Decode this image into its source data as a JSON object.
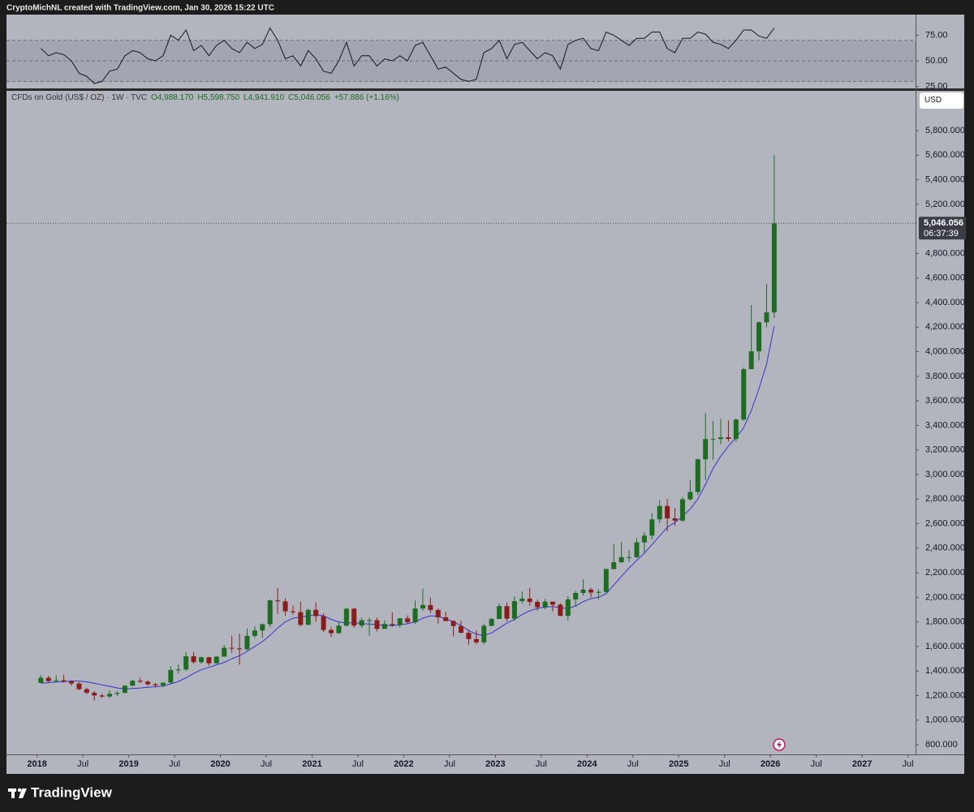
{
  "header": {
    "text": "CryptoMichNL created with TradingView.com, Jan 30, 2026 15:22 UTC"
  },
  "footer": {
    "brand": "TradingView"
  },
  "chart_data": [
    {
      "type": "line",
      "color": "#131722",
      "band_color": "#9a9da6",
      "levels": [
        30,
        50,
        70
      ],
      "ylim": [
        24,
        95
      ],
      "yticks": [
        {
          "value": 25,
          "label": "25.00"
        },
        {
          "value": 50,
          "label": "50.00"
        },
        {
          "value": 75,
          "label": "75.00"
        }
      ],
      "xlim": [
        "2017-09",
        "2027-08"
      ],
      "x": [
        "2018-01",
        "2018-02",
        "2018-03",
        "2018-04",
        "2018-05",
        "2018-06",
        "2018-07",
        "2018-08",
        "2018-09",
        "2018-10",
        "2018-11",
        "2018-12",
        "2019-01",
        "2019-02",
        "2019-03",
        "2019-04",
        "2019-05",
        "2019-06",
        "2019-07",
        "2019-08",
        "2019-09",
        "2019-10",
        "2019-11",
        "2019-12",
        "2020-01",
        "2020-02",
        "2020-03",
        "2020-04",
        "2020-05",
        "2020-06",
        "2020-07",
        "2020-08",
        "2020-09",
        "2020-10",
        "2020-11",
        "2020-12",
        "2021-01",
        "2021-02",
        "2021-03",
        "2021-04",
        "2021-05",
        "2021-06",
        "2021-07",
        "2021-08",
        "2021-09",
        "2021-10",
        "2021-11",
        "2021-12",
        "2022-01",
        "2022-02",
        "2022-03",
        "2022-04",
        "2022-05",
        "2022-06",
        "2022-07",
        "2022-08",
        "2022-09",
        "2022-10",
        "2022-11",
        "2022-12",
        "2023-01",
        "2023-02",
        "2023-03",
        "2023-04",
        "2023-05",
        "2023-06",
        "2023-07",
        "2023-08",
        "2023-09",
        "2023-10",
        "2023-11",
        "2023-12",
        "2024-01",
        "2024-02",
        "2024-03",
        "2024-04",
        "2024-05",
        "2024-06",
        "2024-07",
        "2024-08",
        "2024-09",
        "2024-10",
        "2024-11",
        "2024-12",
        "2025-01",
        "2025-02",
        "2025-03",
        "2025-04",
        "2025-05",
        "2025-06",
        "2025-07",
        "2025-08",
        "2025-09",
        "2025-10",
        "2025-11",
        "2025-12",
        "2026-01"
      ],
      "values": [
        62,
        55,
        58,
        56,
        50,
        38,
        35,
        28,
        30,
        40,
        42,
        55,
        60,
        58,
        52,
        50,
        55,
        75,
        70,
        80,
        60,
        65,
        55,
        65,
        70,
        62,
        58,
        68,
        62,
        66,
        82,
        70,
        52,
        55,
        45,
        60,
        52,
        40,
        38,
        50,
        68,
        45,
        55,
        55,
        45,
        52,
        50,
        55,
        50,
        65,
        68,
        55,
        42,
        44,
        38,
        32,
        30,
        32,
        58,
        62,
        70,
        52,
        66,
        68,
        60,
        52,
        58,
        55,
        42,
        66,
        70,
        72,
        62,
        60,
        78,
        75,
        70,
        65,
        72,
        72,
        78,
        78,
        62,
        58,
        72,
        72,
        78,
        76,
        68,
        66,
        62,
        70,
        80,
        80,
        74,
        72,
        82
      ]
    },
    {
      "type": "candlestick",
      "title": "CFDs on Gold (US$ / OZ) · 1W · TVC",
      "ohlc_text": [
        "O4,988.170",
        "H5,598.750",
        "L4,941.910",
        "C5,046.056"
      ],
      "change_text": "+57.886 (+1.16%)",
      "currency": "USD",
      "up_color": "#1e6b22",
      "down_color": "#8a1c1c",
      "ylim": [
        721,
        6124
      ],
      "yticks": [
        {
          "value": 800,
          "label": "800.000"
        },
        {
          "value": 1000,
          "label": "1,000.000"
        },
        {
          "value": 1200,
          "label": "1,200.000"
        },
        {
          "value": 1400,
          "label": "1,400.000"
        },
        {
          "value": 1600,
          "label": "1,600.000"
        },
        {
          "value": 1800,
          "label": "1,800.000"
        },
        {
          "value": 2000,
          "label": "2,000.000"
        },
        {
          "value": 2200,
          "label": "2,200.000"
        },
        {
          "value": 2400,
          "label": "2,400.000"
        },
        {
          "value": 2600,
          "label": "2,600.000"
        },
        {
          "value": 2800,
          "label": "2,800.000"
        },
        {
          "value": 3000,
          "label": "3,000.000"
        },
        {
          "value": 3200,
          "label": "3,200.000"
        },
        {
          "value": 3400,
          "label": "3,400.000"
        },
        {
          "value": 3600,
          "label": "3,600.000"
        },
        {
          "value": 3800,
          "label": "3,800.000"
        },
        {
          "value": 4000,
          "label": "4,000.000"
        },
        {
          "value": 4200,
          "label": "4,200.000"
        },
        {
          "value": 4400,
          "label": "4,400.000"
        },
        {
          "value": 4600,
          "label": "4,600.000"
        },
        {
          "value": 4800,
          "label": "4,800.000"
        },
        {
          "value": 5200,
          "label": "5,200.000"
        },
        {
          "value": 5400,
          "label": "5,400.000"
        },
        {
          "value": 5600,
          "label": "5,600.000"
        },
        {
          "value": 5800,
          "label": "5,800.000"
        }
      ],
      "xlim": [
        "2017-09",
        "2027-08"
      ],
      "xticks": [
        {
          "value": "2018-01",
          "label": "2018"
        },
        {
          "value": "2018-07",
          "label": "Jul"
        },
        {
          "value": "2019-01",
          "label": "2019"
        },
        {
          "value": "2019-07",
          "label": "Jul"
        },
        {
          "value": "2020-01",
          "label": "2020"
        },
        {
          "value": "2020-07",
          "label": "Jul"
        },
        {
          "value": "2021-01",
          "label": "2021"
        },
        {
          "value": "2021-07",
          "label": "Jul"
        },
        {
          "value": "2022-01",
          "label": "2022"
        },
        {
          "value": "2022-07",
          "label": "Jul"
        },
        {
          "value": "2023-01",
          "label": "2023"
        },
        {
          "value": "2023-07",
          "label": "Jul"
        },
        {
          "value": "2024-01",
          "label": "2024"
        },
        {
          "value": "2024-07",
          "label": "Jul"
        },
        {
          "value": "2025-01",
          "label": "2025"
        },
        {
          "value": "2025-07",
          "label": "Jul"
        },
        {
          "value": "2026-01",
          "label": "2026"
        },
        {
          "value": "2026-07",
          "label": "Jul"
        },
        {
          "value": "2027-01",
          "label": "2027"
        },
        {
          "value": "2027-07",
          "label": "Jul"
        }
      ],
      "last_price": {
        "value": 5046.056,
        "label": "5,046.056"
      },
      "countdown": "06:37:39",
      "x": [
        "2018-01",
        "2018-02",
        "2018-03",
        "2018-04",
        "2018-05",
        "2018-06",
        "2018-07",
        "2018-08",
        "2018-09",
        "2018-10",
        "2018-11",
        "2018-12",
        "2019-01",
        "2019-02",
        "2019-03",
        "2019-04",
        "2019-05",
        "2019-06",
        "2019-07",
        "2019-08",
        "2019-09",
        "2019-10",
        "2019-11",
        "2019-12",
        "2020-01",
        "2020-02",
        "2020-03",
        "2020-04",
        "2020-05",
        "2020-06",
        "2020-07",
        "2020-08",
        "2020-09",
        "2020-10",
        "2020-11",
        "2020-12",
        "2021-01",
        "2021-02",
        "2021-03",
        "2021-04",
        "2021-05",
        "2021-06",
        "2021-07",
        "2021-08",
        "2021-09",
        "2021-10",
        "2021-11",
        "2021-12",
        "2022-01",
        "2022-02",
        "2022-03",
        "2022-04",
        "2022-05",
        "2022-06",
        "2022-07",
        "2022-08",
        "2022-09",
        "2022-10",
        "2022-11",
        "2022-12",
        "2023-01",
        "2023-02",
        "2023-03",
        "2023-04",
        "2023-05",
        "2023-06",
        "2023-07",
        "2023-08",
        "2023-09",
        "2023-10",
        "2023-11",
        "2023-12",
        "2024-01",
        "2024-02",
        "2024-03",
        "2024-04",
        "2024-05",
        "2024-06",
        "2024-07",
        "2024-08",
        "2024-09",
        "2024-10",
        "2024-11",
        "2024-12",
        "2025-01",
        "2025-02",
        "2025-03",
        "2025-04",
        "2025-05",
        "2025-06",
        "2025-07",
        "2025-08",
        "2025-09",
        "2025-10",
        "2025-11",
        "2025-12",
        "2026-01"
      ],
      "open": [
        1303,
        1345,
        1318,
        1325,
        1315,
        1298,
        1252,
        1223,
        1201,
        1192,
        1214,
        1222,
        1281,
        1321,
        1313,
        1292,
        1283,
        1305,
        1409,
        1413,
        1520,
        1472,
        1512,
        1463,
        1517,
        1589,
        1585,
        1577,
        1686,
        1730,
        1781,
        1975,
        1967,
        1886,
        1879,
        1776,
        1898,
        1847,
        1734,
        1708,
        1769,
        1907,
        1770,
        1814,
        1814,
        1743,
        1783,
        1774,
        1829,
        1797,
        1909,
        1937,
        1897,
        1837,
        1807,
        1766,
        1711,
        1660,
        1633,
        1768,
        1824,
        1928,
        1827,
        1969,
        1990,
        1963,
        1919,
        1965,
        1940,
        1849,
        1983,
        2036,
        2063,
        2039,
        2044,
        2230,
        2286,
        2327,
        2327,
        2447,
        2503,
        2635,
        2744,
        2643,
        2625,
        2798,
        2858,
        3124,
        3289,
        3289,
        3303,
        3290,
        3448,
        3858,
        4003,
        4239,
        4320
      ],
      "high": [
        1366,
        1361,
        1365,
        1369,
        1326,
        1309,
        1265,
        1237,
        1214,
        1243,
        1237,
        1284,
        1326,
        1346,
        1324,
        1303,
        1306,
        1439,
        1453,
        1555,
        1557,
        1518,
        1516,
        1521,
        1611,
        1689,
        1704,
        1747,
        1765,
        1786,
        1984,
        2075,
        1992,
        1933,
        1965,
        1906,
        1959,
        1871,
        1756,
        1798,
        1913,
        1916,
        1834,
        1832,
        1834,
        1814,
        1877,
        1830,
        1853,
        1974,
        2070,
        1998,
        1910,
        1880,
        1814,
        1808,
        1735,
        1730,
        1786,
        1833,
        1949,
        1959,
        2009,
        2048,
        2079,
        1983,
        1987,
        1949,
        1953,
        2009,
        2052,
        2146,
        2079,
        2065,
        2236,
        2431,
        2450,
        2387,
        2483,
        2531,
        2685,
        2790,
        2801,
        2726,
        2817,
        2956,
        3128,
        3500,
        3435,
        3452,
        3439,
        3454,
        3872,
        4381,
        4245,
        4550,
        5598.75
      ],
      "low": [
        1302,
        1307,
        1303,
        1302,
        1282,
        1245,
        1211,
        1160,
        1180,
        1182,
        1196,
        1221,
        1276,
        1303,
        1281,
        1266,
        1267,
        1301,
        1381,
        1400,
        1459,
        1458,
        1445,
        1459,
        1517,
        1548,
        1451,
        1568,
        1670,
        1671,
        1757,
        1863,
        1849,
        1860,
        1764,
        1775,
        1802,
        1717,
        1677,
        1706,
        1767,
        1751,
        1751,
        1688,
        1722,
        1746,
        1759,
        1753,
        1781,
        1781,
        1890,
        1872,
        1787,
        1805,
        1681,
        1709,
        1615,
        1618,
        1616,
        1765,
        1823,
        1804,
        1809,
        1949,
        1932,
        1893,
        1903,
        1885,
        1846,
        1810,
        1931,
        2016,
        2001,
        1984,
        2039,
        2228,
        2277,
        2286,
        2319,
        2364,
        2472,
        2604,
        2536,
        2583,
        2614,
        2789,
        2833,
        2957,
        3121,
        3247,
        3268,
        3268,
        3436,
        3858,
        3929,
        4200,
        4275
      ],
      "close": [
        1345,
        1318,
        1325,
        1315,
        1298,
        1252,
        1223,
        1201,
        1192,
        1214,
        1222,
        1281,
        1321,
        1313,
        1292,
        1283,
        1305,
        1409,
        1413,
        1520,
        1472,
        1512,
        1463,
        1517,
        1589,
        1585,
        1577,
        1686,
        1730,
        1781,
        1975,
        1967,
        1886,
        1879,
        1776,
        1898,
        1847,
        1734,
        1708,
        1769,
        1907,
        1770,
        1814,
        1814,
        1743,
        1783,
        1774,
        1829,
        1797,
        1909,
        1937,
        1897,
        1837,
        1807,
        1766,
        1711,
        1660,
        1633,
        1768,
        1824,
        1928,
        1827,
        1969,
        1990,
        1963,
        1919,
        1965,
        1940,
        1849,
        1983,
        2036,
        2063,
        2039,
        2044,
        2230,
        2286,
        2327,
        2327,
        2447,
        2503,
        2635,
        2744,
        2643,
        2625,
        2798,
        2858,
        3124,
        3289,
        3289,
        3303,
        3290,
        3448,
        3858,
        4003,
        4239,
        4320,
        5046.056
      ],
      "ma": {
        "color": "#3535d0",
        "values": [
          1300,
          1305,
          1310,
          1315,
          1318,
          1318,
          1312,
          1300,
          1288,
          1275,
          1262,
          1255,
          1258,
          1262,
          1268,
          1272,
          1278,
          1295,
          1315,
          1345,
          1380,
          1410,
          1430,
          1450,
          1470,
          1500,
          1525,
          1560,
          1600,
          1640,
          1690,
          1750,
          1800,
          1830,
          1840,
          1850,
          1860,
          1850,
          1820,
          1800,
          1790,
          1795,
          1785,
          1782,
          1778,
          1772,
          1770,
          1775,
          1785,
          1800,
          1830,
          1850,
          1845,
          1825,
          1800,
          1770,
          1730,
          1700,
          1690,
          1710,
          1750,
          1790,
          1820,
          1860,
          1890,
          1910,
          1920,
          1925,
          1915,
          1910,
          1930,
          1965,
          1990,
          2000,
          2030,
          2100,
          2170,
          2240,
          2300,
          2360,
          2430,
          2500,
          2570,
          2610,
          2660,
          2720,
          2800,
          2920,
          3050,
          3150,
          3230,
          3300,
          3380,
          3520,
          3700,
          3900,
          4210
        ]
      }
    }
  ]
}
